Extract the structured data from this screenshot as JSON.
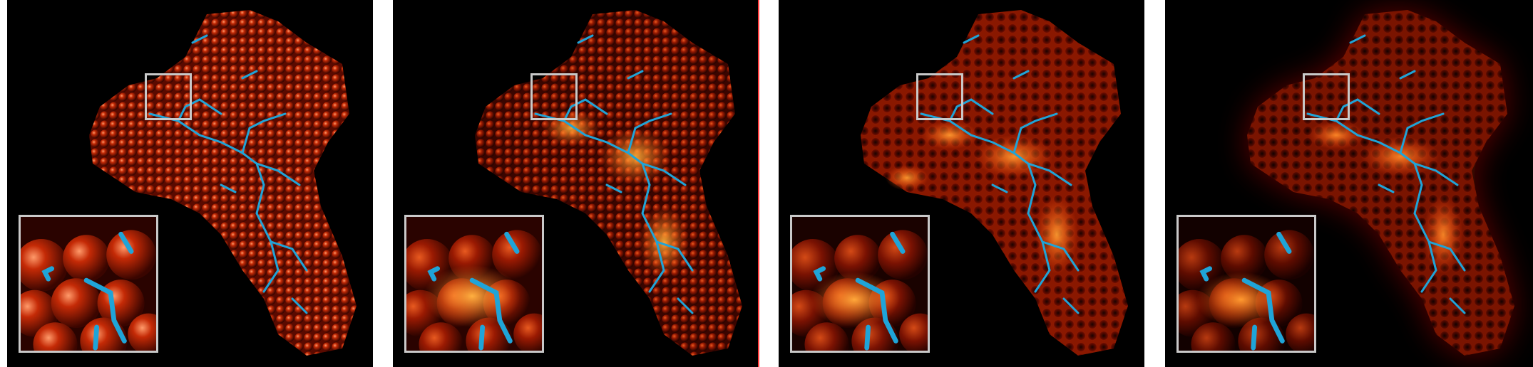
{
  "panels": [
    {
      "id": "panel-1",
      "style": "full-atom-shading",
      "colors": {
        "base": "#8a1200",
        "highlight": "#ff7a2a",
        "tube": "#1fa4d8"
      }
    },
    {
      "id": "panel-2",
      "style": "ambient-occlusion-shading",
      "colors": {
        "base": "#7a1000",
        "highlight": "#ffb23a",
        "tube": "#1fa4d8"
      }
    },
    {
      "id": "panel-3",
      "style": "cavity-emphasis-shading",
      "colors": {
        "base": "#5a0800",
        "highlight": "#ff9a30",
        "tube": "#1fa4d8"
      }
    },
    {
      "id": "panel-4",
      "style": "halo-glow-shading",
      "colors": {
        "base": "#4a0600",
        "highlight": "#ff8a28",
        "tube": "#1fa4d8",
        "halo": "#6a0a00"
      }
    }
  ],
  "separators": {
    "color": "#ffffff",
    "accent": "#ff3b3b"
  }
}
